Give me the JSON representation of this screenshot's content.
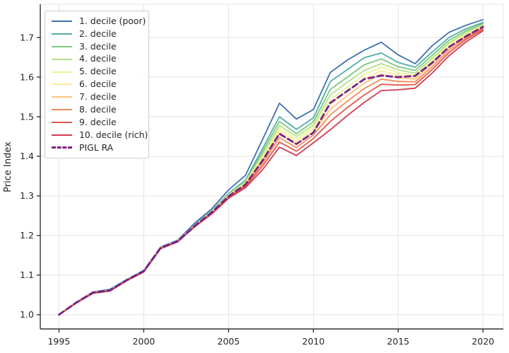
{
  "chart_data": {
    "type": "line",
    "title": "",
    "xlabel": "",
    "ylabel": "Price Index",
    "grid": true,
    "legend_position": "upper left",
    "grid_color": "#e3e3e3",
    "axis_color": "#333333",
    "minor_spine_color": "#e6e6e6",
    "tick_label_color": "#262626",
    "xlim": [
      1993.9,
      2021.2
    ],
    "ylim": [
      0.964,
      1.784
    ],
    "x_ticks": [
      1995,
      2000,
      2005,
      2010,
      2015,
      2020
    ],
    "y_ticks": [
      1.0,
      1.1,
      1.2,
      1.3,
      1.4,
      1.5,
      1.6,
      1.7
    ],
    "x": [
      1995,
      1996,
      1997,
      1998,
      1999,
      2000,
      2001,
      2002,
      2003,
      2004,
      2005,
      2006,
      2007,
      2008,
      2009,
      2010,
      2011,
      2012,
      2013,
      2014,
      2015,
      2016,
      2017,
      2018,
      2019,
      2020
    ],
    "series": [
      {
        "name": "1. decile (poor)",
        "color": "#3b70b2",
        "dash": "solid",
        "values": [
          1.0,
          1.031,
          1.057,
          1.064,
          1.089,
          1.112,
          1.171,
          1.188,
          1.231,
          1.267,
          1.315,
          1.352,
          1.442,
          1.534,
          1.494,
          1.518,
          1.612,
          1.643,
          1.668,
          1.688,
          1.656,
          1.634,
          1.679,
          1.713,
          1.731,
          1.745
        ]
      },
      {
        "name": "2. decile",
        "color": "#54ada6",
        "dash": "solid",
        "values": [
          1.0,
          1.03,
          1.056,
          1.062,
          1.088,
          1.11,
          1.17,
          1.186,
          1.227,
          1.262,
          1.306,
          1.34,
          1.419,
          1.5,
          1.468,
          1.497,
          1.589,
          1.619,
          1.649,
          1.661,
          1.637,
          1.625,
          1.663,
          1.7,
          1.722,
          1.738
        ]
      },
      {
        "name": "3. decile",
        "color": "#7dc87e",
        "dash": "solid",
        "values": [
          1.0,
          1.03,
          1.056,
          1.062,
          1.088,
          1.11,
          1.17,
          1.186,
          1.226,
          1.261,
          1.304,
          1.337,
          1.411,
          1.488,
          1.457,
          1.487,
          1.569,
          1.6,
          1.631,
          1.646,
          1.626,
          1.617,
          1.655,
          1.693,
          1.717,
          1.735
        ]
      },
      {
        "name": "4. decile",
        "color": "#b5e08a",
        "dash": "solid",
        "values": [
          1.0,
          1.03,
          1.055,
          1.061,
          1.087,
          1.11,
          1.169,
          1.186,
          1.226,
          1.26,
          1.303,
          1.335,
          1.404,
          1.478,
          1.45,
          1.479,
          1.555,
          1.587,
          1.617,
          1.634,
          1.618,
          1.61,
          1.648,
          1.687,
          1.713,
          1.732
        ]
      },
      {
        "name": "5. decile",
        "color": "#e6f59b",
        "dash": "solid",
        "values": [
          1.0,
          1.03,
          1.055,
          1.061,
          1.087,
          1.109,
          1.169,
          1.185,
          1.225,
          1.259,
          1.301,
          1.333,
          1.399,
          1.471,
          1.443,
          1.473,
          1.543,
          1.575,
          1.606,
          1.625,
          1.611,
          1.605,
          1.643,
          1.683,
          1.709,
          1.73
        ]
      },
      {
        "name": "6. decile",
        "color": "#fde897",
        "dash": "solid",
        "values": [
          1.0,
          1.03,
          1.055,
          1.061,
          1.087,
          1.109,
          1.169,
          1.185,
          1.225,
          1.258,
          1.3,
          1.331,
          1.394,
          1.464,
          1.437,
          1.467,
          1.532,
          1.564,
          1.596,
          1.616,
          1.605,
          1.6,
          1.638,
          1.678,
          1.706,
          1.728
        ]
      },
      {
        "name": "7. decile",
        "color": "#fac57b",
        "dash": "solid",
        "values": [
          1.0,
          1.029,
          1.055,
          1.061,
          1.087,
          1.109,
          1.168,
          1.185,
          1.224,
          1.257,
          1.299,
          1.329,
          1.389,
          1.456,
          1.43,
          1.461,
          1.519,
          1.553,
          1.585,
          1.607,
          1.598,
          1.595,
          1.633,
          1.674,
          1.703,
          1.726
        ]
      },
      {
        "name": "8. decile",
        "color": "#f18d5a",
        "dash": "solid",
        "values": [
          1.0,
          1.029,
          1.054,
          1.06,
          1.086,
          1.109,
          1.168,
          1.184,
          1.223,
          1.256,
          1.297,
          1.327,
          1.382,
          1.447,
          1.422,
          1.454,
          1.505,
          1.539,
          1.571,
          1.595,
          1.589,
          1.588,
          1.626,
          1.668,
          1.699,
          1.724
        ]
      },
      {
        "name": "9. decile",
        "color": "#e0584b",
        "dash": "solid",
        "values": [
          1.0,
          1.029,
          1.054,
          1.06,
          1.086,
          1.108,
          1.167,
          1.184,
          1.223,
          1.255,
          1.296,
          1.324,
          1.375,
          1.436,
          1.413,
          1.445,
          1.488,
          1.523,
          1.555,
          1.582,
          1.58,
          1.581,
          1.619,
          1.662,
          1.695,
          1.721
        ]
      },
      {
        "name": "10. decile (rich)",
        "color": "#d23b4f",
        "dash": "solid",
        "values": [
          1.0,
          1.029,
          1.054,
          1.06,
          1.086,
          1.108,
          1.167,
          1.184,
          1.222,
          1.254,
          1.294,
          1.321,
          1.366,
          1.423,
          1.402,
          1.434,
          1.467,
          1.503,
          1.536,
          1.566,
          1.568,
          1.572,
          1.61,
          1.654,
          1.689,
          1.717
        ]
      },
      {
        "name": "PIGL RA",
        "color": "#7b2184",
        "dash": "dashed",
        "values": [
          1.0,
          1.03,
          1.056,
          1.061,
          1.087,
          1.11,
          1.169,
          1.185,
          1.224,
          1.258,
          1.299,
          1.329,
          1.389,
          1.457,
          1.431,
          1.46,
          1.535,
          1.565,
          1.595,
          1.604,
          1.6,
          1.603,
          1.636,
          1.676,
          1.703,
          1.727
        ]
      }
    ]
  }
}
